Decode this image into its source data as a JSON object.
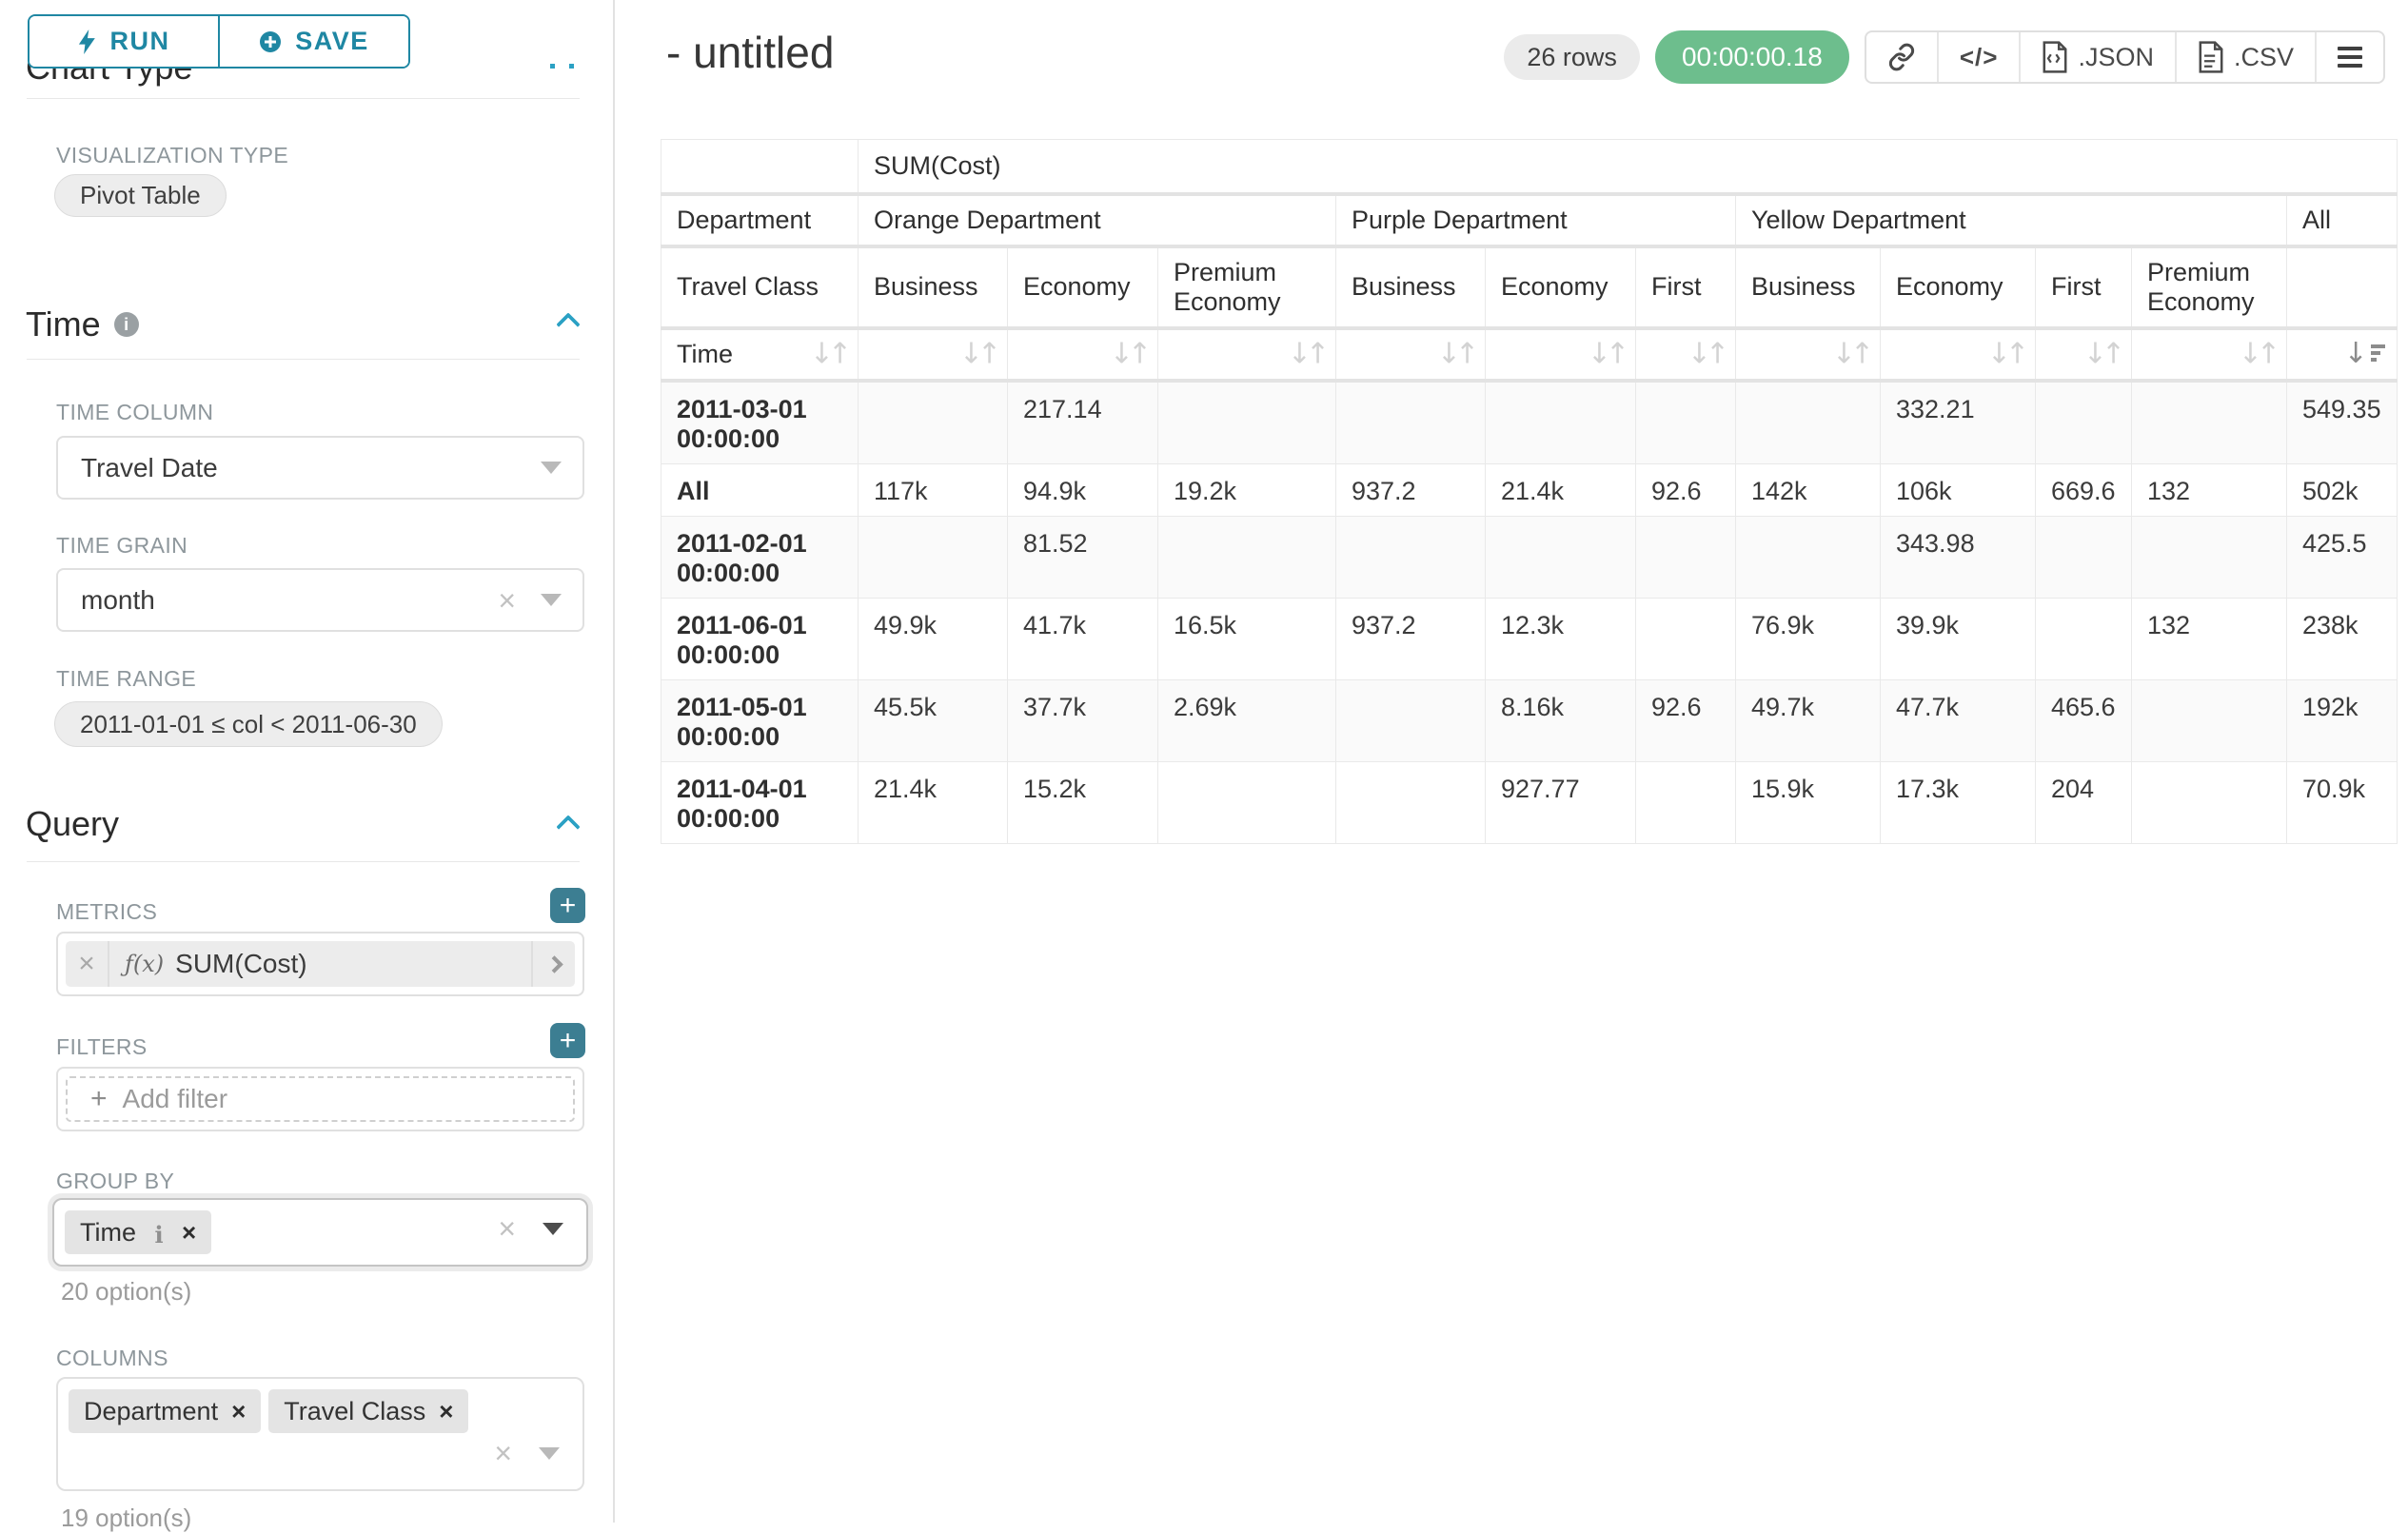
{
  "colors": {
    "accent": "#1f87a3",
    "accent_square": "#3c7e92",
    "chevron_blue": "#2ba1c4",
    "timer_green": "#6dbe8d",
    "label_gray": "#8e979c"
  },
  "sidebar": {
    "run_label": "RUN",
    "save_label": "SAVE",
    "chart_type_heading": "Chart Type",
    "viz_type_label": "VISUALIZATION TYPE",
    "viz_type_value": "Pivot Table",
    "time_section_title": "Time",
    "time_column_label": "TIME COLUMN",
    "time_column_value": "Travel Date",
    "time_grain_label": "TIME GRAIN",
    "time_grain_value": "month",
    "time_range_label": "TIME RANGE",
    "time_range_value": "2011-01-01 ≤ col < 2011-06-30",
    "query_section_title": "Query",
    "metrics_label": "METRICS",
    "metric_prefix": "ƒ(x)",
    "metric_value": "SUM(Cost)",
    "filters_label": "FILTERS",
    "add_filter_label": "Add filter",
    "group_by_label": "GROUP BY",
    "group_by_chips": [
      {
        "label": "Time",
        "has_info": true
      }
    ],
    "group_by_helper": "20 option(s)",
    "columns_label": "COLUMNS",
    "columns_chips": [
      {
        "label": "Department",
        "has_info": false
      },
      {
        "label": "Travel Class",
        "has_info": false
      }
    ],
    "columns_helper": "19 option(s)"
  },
  "header": {
    "title": "- untitled",
    "rows_badge": "26 rows",
    "timer": "00:00:00.18",
    "code_glyph": "</>",
    "json_label": ".JSON",
    "csv_label": ".CSV"
  },
  "table": {
    "metric_header": "SUM(Cost)",
    "dept_row_label": "Department",
    "class_row_label": "Travel Class",
    "time_row_label": "Time",
    "dept_groups": [
      {
        "label": "Orange Department",
        "span": 3
      },
      {
        "label": "Purple Department",
        "span": 3
      },
      {
        "label": "Yellow Department",
        "span": 4
      },
      {
        "label": "All",
        "span": 1
      }
    ],
    "class_headers": [
      "Business",
      "Economy",
      "Premium Economy",
      "Business",
      "Economy",
      "First",
      "Business",
      "Economy",
      "First",
      "Premium Economy",
      ""
    ],
    "rows": [
      {
        "label": "2011-03-01 00:00:00",
        "values": [
          "",
          "217.14",
          "",
          "",
          "",
          "",
          "",
          "332.21",
          "",
          "",
          "549.35"
        ]
      },
      {
        "label": "All",
        "values": [
          "117k",
          "94.9k",
          "19.2k",
          "937.2",
          "21.4k",
          "92.6",
          "142k",
          "106k",
          "669.6",
          "132",
          "502k"
        ]
      },
      {
        "label": "2011-02-01 00:00:00",
        "values": [
          "",
          "81.52",
          "",
          "",
          "",
          "",
          "",
          "343.98",
          "",
          "",
          "425.5"
        ]
      },
      {
        "label": "2011-06-01 00:00:00",
        "values": [
          "49.9k",
          "41.7k",
          "16.5k",
          "937.2",
          "12.3k",
          "",
          "76.9k",
          "39.9k",
          "",
          "132",
          "238k"
        ]
      },
      {
        "label": "2011-05-01 00:00:00",
        "values": [
          "45.5k",
          "37.7k",
          "2.69k",
          "",
          "8.16k",
          "92.6",
          "49.7k",
          "47.7k",
          "465.6",
          "",
          "192k"
        ]
      },
      {
        "label": "2011-04-01 00:00:00",
        "values": [
          "21.4k",
          "15.2k",
          "",
          "",
          "927.77",
          "",
          "15.9k",
          "17.3k",
          "204",
          "",
          "70.9k"
        ]
      }
    ]
  }
}
